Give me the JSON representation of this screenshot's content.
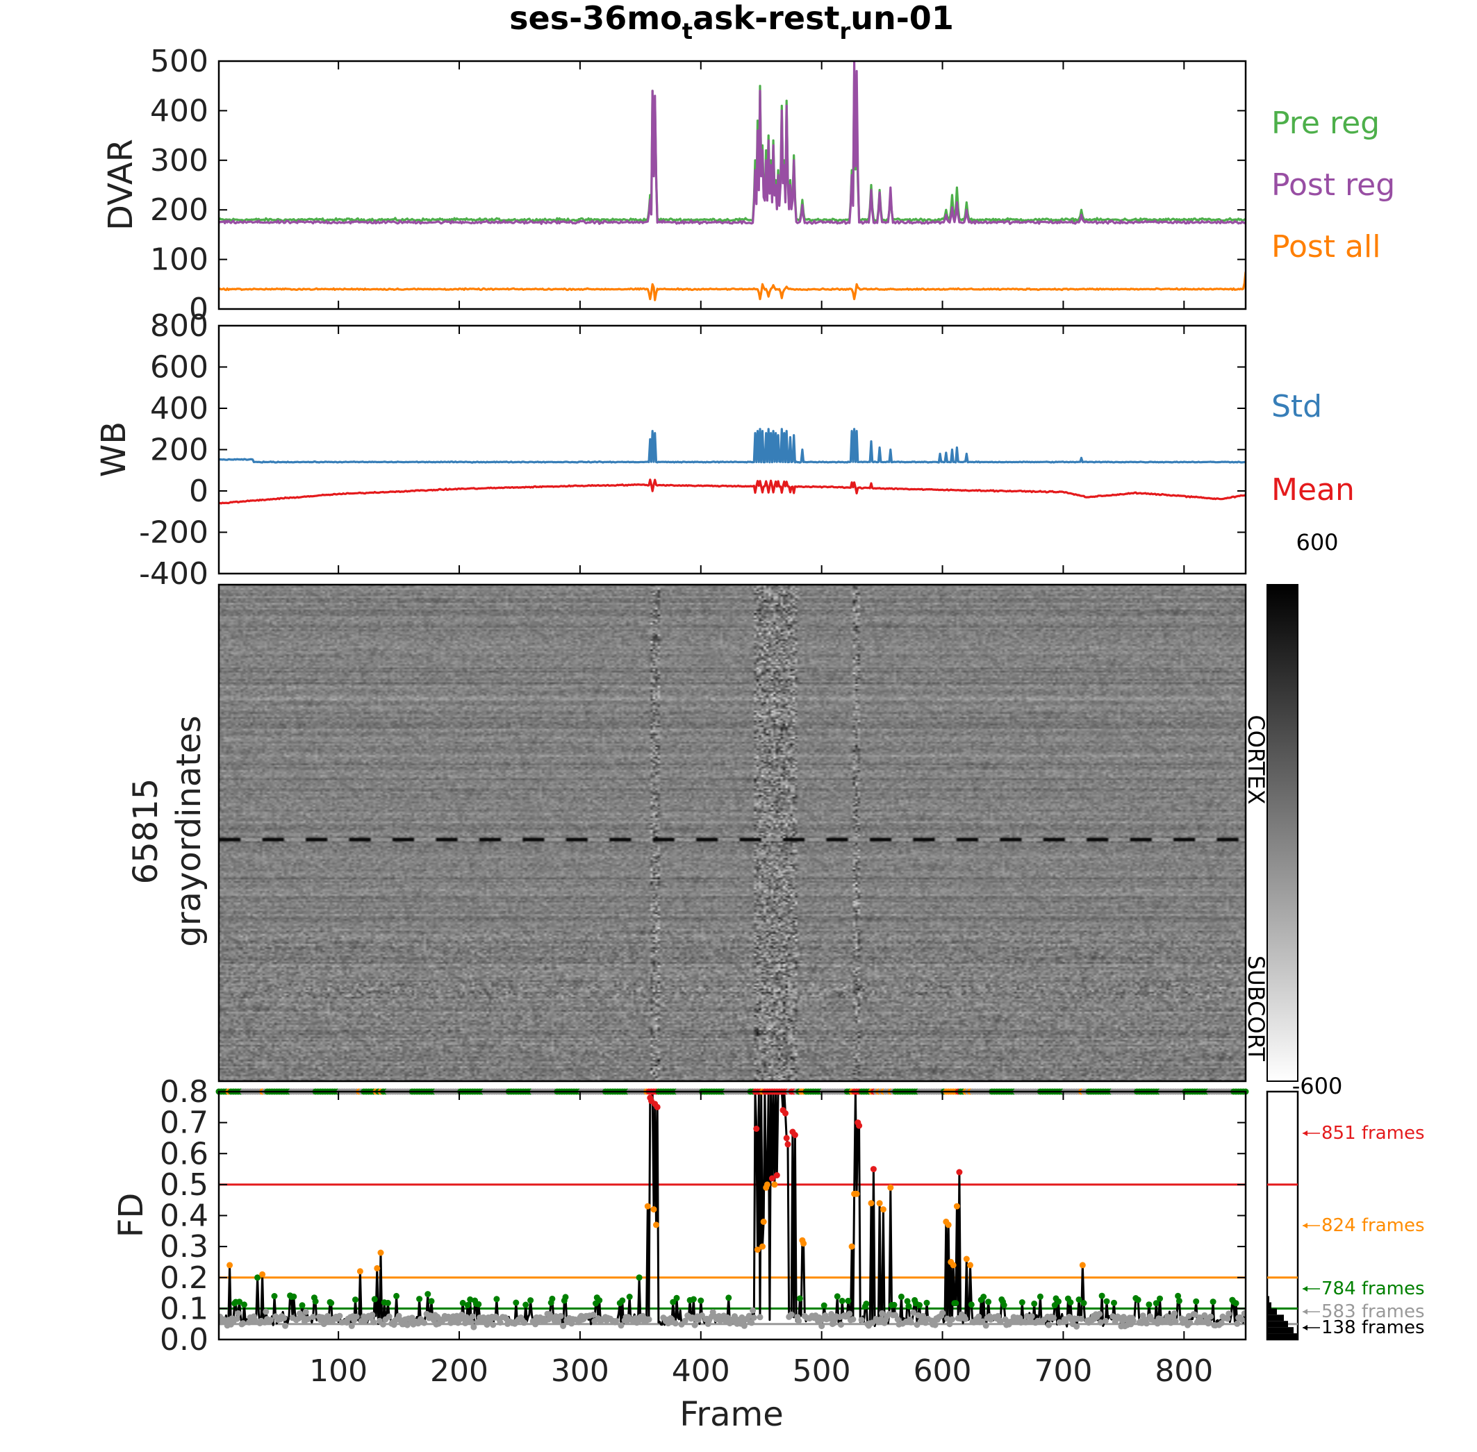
{
  "title": {
    "main": "ses-36mo",
    "sub1": "t",
    "mid": "ask-rest",
    "sub2": "r",
    "end": "un-01"
  },
  "colors": {
    "pre_reg": "#4daf4a",
    "post_reg": "#984ea3",
    "post_all": "#ff7f00",
    "std": "#377eb8",
    "mean": "#e41a1c",
    "fd_red": "#e41a1c",
    "fd_orange": "#ff8c00",
    "fd_green": "#008000",
    "fd_gray": "#999999"
  },
  "x_axis": {
    "label": "Frame",
    "range": [
      1,
      851
    ],
    "ticks": [
      100,
      200,
      300,
      400,
      500,
      600,
      700,
      800
    ]
  },
  "chart_data": [
    {
      "type": "line",
      "panel": "dvar",
      "ylabel": "DVAR",
      "ylim": [
        0,
        500
      ],
      "yticks": [
        0,
        100,
        200,
        300,
        400,
        500
      ],
      "legend_placement": "right",
      "series": [
        {
          "name": "Pre reg",
          "color": "#4daf4a",
          "baseline": 180,
          "spikes": [
            [
              358,
              230
            ],
            [
              360,
              440
            ],
            [
              362,
              420
            ],
            [
              445,
              300
            ],
            [
              447,
              380
            ],
            [
              449,
              450
            ],
            [
              451,
              330
            ],
            [
              454,
              320
            ],
            [
              456,
              350
            ],
            [
              458,
              300
            ],
            [
              460,
              340
            ],
            [
              462,
              260
            ],
            [
              464,
              280
            ],
            [
              467,
              410
            ],
            [
              469,
              300
            ],
            [
              471,
              420
            ],
            [
              474,
              260
            ],
            [
              477,
              310
            ],
            [
              484,
              220
            ],
            [
              525,
              280
            ],
            [
              527,
              470
            ],
            [
              529,
              400
            ],
            [
              541,
              250
            ],
            [
              548,
              240
            ],
            [
              557,
              230
            ],
            [
              603,
              200
            ],
            [
              608,
              230
            ],
            [
              612,
              245
            ],
            [
              620,
              215
            ],
            [
              715,
              200
            ]
          ]
        },
        {
          "name": "Post reg",
          "color": "#984ea3",
          "baseline": 175,
          "spikes": [
            [
              358,
              220
            ],
            [
              360,
              440
            ],
            [
              362,
              430
            ],
            [
              445,
              280
            ],
            [
              447,
              360
            ],
            [
              449,
              440
            ],
            [
              451,
              320
            ],
            [
              454,
              300
            ],
            [
              456,
              340
            ],
            [
              458,
              290
            ],
            [
              460,
              330
            ],
            [
              462,
              250
            ],
            [
              464,
              270
            ],
            [
              467,
              400
            ],
            [
              469,
              290
            ],
            [
              471,
              410
            ],
            [
              474,
              250
            ],
            [
              477,
              300
            ],
            [
              484,
              210
            ],
            [
              525,
              270
            ],
            [
              527,
              498
            ],
            [
              529,
              480
            ],
            [
              541,
              240
            ],
            [
              548,
              235
            ],
            [
              557,
              245
            ],
            [
              603,
              190
            ],
            [
              608,
              205
            ],
            [
              612,
              215
            ],
            [
              620,
              200
            ],
            [
              715,
              190
            ]
          ]
        },
        {
          "name": "Post all",
          "color": "#ff7f00",
          "baseline": 40,
          "spikes": [
            [
              358,
              20
            ],
            [
              360,
              50
            ],
            [
              362,
              18
            ],
            [
              449,
              20
            ],
            [
              451,
              50
            ],
            [
              456,
              25
            ],
            [
              460,
              48
            ],
            [
              467,
              22
            ],
            [
              471,
              45
            ],
            [
              527,
              20
            ],
            [
              529,
              50
            ],
            [
              851,
              75
            ]
          ]
        }
      ]
    },
    {
      "type": "line",
      "panel": "wb",
      "ylabel": "WB",
      "ylim": [
        -400,
        800
      ],
      "yticks": [
        -400,
        -200,
        0,
        200,
        400,
        600,
        800
      ],
      "legend_placement": "right",
      "series": [
        {
          "name": "Std",
          "color": "#377eb8",
          "baseline": 140,
          "spikes": [
            [
              358,
              250
            ],
            [
              360,
              290
            ],
            [
              362,
              280
            ],
            [
              445,
              280
            ],
            [
              447,
              290
            ],
            [
              449,
              300
            ],
            [
              451,
              290
            ],
            [
              454,
              280
            ],
            [
              456,
              300
            ],
            [
              458,
              280
            ],
            [
              460,
              290
            ],
            [
              462,
              280
            ],
            [
              464,
              270
            ],
            [
              467,
              300
            ],
            [
              469,
              280
            ],
            [
              471,
              290
            ],
            [
              474,
              260
            ],
            [
              477,
              270
            ],
            [
              484,
              200
            ],
            [
              525,
              290
            ],
            [
              527,
              300
            ],
            [
              529,
              290
            ],
            [
              541,
              240
            ],
            [
              548,
              210
            ],
            [
              557,
              200
            ],
            [
              598,
              180
            ],
            [
              603,
              185
            ],
            [
              608,
              200
            ],
            [
              612,
              210
            ],
            [
              620,
              180
            ],
            [
              715,
              160
            ]
          ]
        },
        {
          "name": "Mean",
          "color": "#e41a1c",
          "trend": [
            [
              1,
              -60
            ],
            [
              100,
              -15
            ],
            [
              200,
              10
            ],
            [
              300,
              25
            ],
            [
              350,
              30
            ],
            [
              400,
              25
            ],
            [
              500,
              20
            ],
            [
              600,
              5
            ],
            [
              700,
              -5
            ],
            [
              720,
              -30
            ],
            [
              760,
              -10
            ],
            [
              800,
              -25
            ],
            [
              830,
              -40
            ],
            [
              851,
              -20
            ]
          ]
        }
      ]
    },
    {
      "type": "heatmap",
      "panel": "grayordinates",
      "ylabel_line1": "65815",
      "ylabel_line2": "grayordinates",
      "colorbar_max": "600",
      "colorbar_min": "-600",
      "colorbar_range": [
        -600,
        600
      ],
      "structures": [
        "CORTEX",
        "SUBCORT"
      ],
      "artifact_frames": [
        358,
        360,
        362,
        445,
        447,
        449,
        451,
        454,
        456,
        458,
        460,
        462,
        464,
        467,
        469,
        471,
        474,
        477,
        527,
        529
      ]
    },
    {
      "type": "line",
      "panel": "fd",
      "ylabel": "FD",
      "ylim": [
        0,
        0.8
      ],
      "yticks": [
        0.0,
        0.1,
        0.2,
        0.3,
        0.4,
        0.5,
        0.6,
        0.7,
        0.8
      ],
      "yticklabels": [
        "0.0",
        "0.1",
        "0.2",
        "0.3",
        "0.4",
        "0.5",
        "0.6",
        "0.7",
        "0.8"
      ],
      "thresholds": [
        {
          "value": 0.5,
          "color": "#e41a1c"
        },
        {
          "value": 0.2,
          "color": "#ff8c00"
        },
        {
          "value": 0.1,
          "color": "#008000"
        },
        {
          "value": 0.05,
          "color": "#999999"
        }
      ],
      "fd_spikes": [
        [
          10,
          0.24
        ],
        [
          33,
          0.2
        ],
        [
          37,
          0.21
        ],
        [
          118,
          0.22
        ],
        [
          132,
          0.23
        ],
        [
          135,
          0.28
        ],
        [
          349,
          0.2
        ],
        [
          356,
          0.43
        ],
        [
          358,
          0.78
        ],
        [
          359,
          0.77
        ],
        [
          360,
          0.8
        ],
        [
          361,
          0.42
        ],
        [
          362,
          0.76
        ],
        [
          363,
          0.37
        ],
        [
          364,
          0.75
        ],
        [
          445,
          0.8
        ],
        [
          446,
          0.68
        ],
        [
          447,
          0.29
        ],
        [
          448,
          0.8
        ],
        [
          450,
          0.8
        ],
        [
          451,
          0.3
        ],
        [
          452,
          0.38
        ],
        [
          453,
          0.8
        ],
        [
          454,
          0.49
        ],
        [
          455,
          0.5
        ],
        [
          456,
          0.8
        ],
        [
          458,
          0.8
        ],
        [
          459,
          0.52
        ],
        [
          460,
          0.8
        ],
        [
          461,
          0.5
        ],
        [
          462,
          0.8
        ],
        [
          463,
          0.53
        ],
        [
          464,
          0.8
        ],
        [
          465,
          0.8
        ],
        [
          466,
          0.8
        ],
        [
          467,
          0.8
        ],
        [
          468,
          0.74
        ],
        [
          469,
          0.8
        ],
        [
          470,
          0.73
        ],
        [
          471,
          0.65
        ],
        [
          472,
          0.63
        ],
        [
          476,
          0.67
        ],
        [
          478,
          0.66
        ],
        [
          484,
          0.32
        ],
        [
          485,
          0.31
        ],
        [
          525,
          0.3
        ],
        [
          527,
          0.47
        ],
        [
          528,
          0.8
        ],
        [
          529,
          0.47
        ],
        [
          530,
          0.7
        ],
        [
          531,
          0.69
        ],
        [
          541,
          0.44
        ],
        [
          543,
          0.55
        ],
        [
          548,
          0.44
        ],
        [
          551,
          0.42
        ],
        [
          557,
          0.49
        ],
        [
          603,
          0.38
        ],
        [
          605,
          0.37
        ],
        [
          607,
          0.25
        ],
        [
          609,
          0.24
        ],
        [
          612,
          0.43
        ],
        [
          614,
          0.54
        ],
        [
          620,
          0.26
        ],
        [
          623,
          0.24
        ],
        [
          716,
          0.24
        ]
      ],
      "frame_counts": [
        {
          "label": "851 frames",
          "color": "#e41a1c"
        },
        {
          "label": "824 frames",
          "color": "#ff8c00"
        },
        {
          "label": "784 frames",
          "color": "#008000"
        },
        {
          "label": "583 frames",
          "color": "#999999"
        },
        {
          "label": "138 frames",
          "color": "#000000"
        }
      ]
    }
  ]
}
